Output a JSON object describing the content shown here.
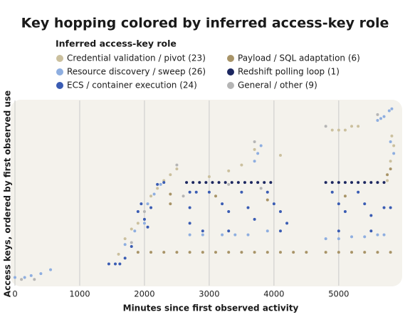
{
  "chart_data": {
    "type": "scatter",
    "title": "Key hopping colored by inferred access-key role",
    "legend_title": "Inferred access-key role",
    "xlabel": "Minutes since first observed activity",
    "ylabel": "Access keys, ordered by first observed use",
    "xlim": [
      -66,
      5870
    ],
    "xticks": [
      0,
      1000,
      2000,
      3000,
      4000,
      5000
    ],
    "ylim": [
      0,
      90
    ],
    "grid": true,
    "series": [
      {
        "name": "Credential validation / pivot (23)",
        "color": "#cbc09e",
        "x": [
          1600,
          1700,
          1800,
          1900,
          2100,
          2200,
          2300,
          2400,
          2500,
          3000,
          3300,
          3500,
          3700,
          4100,
          4900,
          5000,
          5100,
          5200,
          5300,
          5750,
          5800,
          5820,
          5850
        ],
        "y": [
          14,
          22,
          27,
          30,
          44,
          48,
          52,
          55,
          58,
          54,
          57,
          60,
          68,
          65,
          78,
          78,
          78,
          80,
          80,
          52,
          62,
          75,
          70
        ]
      },
      {
        "name": "Resource discovery / sweep (26)",
        "color": "#8eaee0",
        "x": [
          0,
          150,
          250,
          400,
          550,
          1700,
          1850,
          2000,
          2050,
          2150,
          2250,
          2700,
          2900,
          3200,
          3400,
          3600,
          3700,
          3750,
          3800,
          3900,
          4800,
          5000,
          5200,
          5400,
          5600,
          5700,
          5600,
          5650,
          5700,
          5780,
          5820,
          5800,
          5850
        ],
        "y": [
          2,
          2,
          3,
          4,
          6,
          19,
          26,
          30,
          40,
          45,
          50,
          24,
          24,
          24,
          24,
          24,
          62,
          66,
          70,
          26,
          22,
          22,
          23,
          23,
          24,
          24,
          83,
          84,
          85,
          88,
          89,
          72,
          66
        ]
      },
      {
        "name": "ECS / container execution (24)",
        "color": "#3a5cb3",
        "x": [
          1450,
          1550,
          1620,
          1700,
          1800,
          1900,
          1950,
          2000,
          2050,
          2100,
          2200,
          2300,
          2700,
          2700,
          2700,
          2800,
          2900,
          3000,
          3200,
          3300,
          3300,
          3500,
          3600,
          3700,
          3900,
          4000,
          4100,
          4100,
          4200,
          4900,
          5000,
          5000,
          5100,
          5300,
          5400,
          5500,
          5500,
          5700,
          5800
        ],
        "y": [
          9,
          9,
          9,
          12,
          18,
          36,
          40,
          32,
          28,
          38,
          50,
          51,
          46,
          38,
          30,
          46,
          26,
          46,
          40,
          36,
          26,
          46,
          38,
          32,
          46,
          40,
          36,
          26,
          30,
          46,
          40,
          26,
          36,
          46,
          40,
          34,
          26,
          38,
          38
        ]
      },
      {
        "name": "Payload / SQL adaptation (6)",
        "color": "#a89468",
        "x": [
          1900,
          2100,
          2300,
          2500,
          2700,
          2900,
          3100,
          3300,
          3500,
          3700,
          3900,
          4100,
          4300,
          4500,
          4800,
          5000,
          5200,
          5400,
          5600,
          5800,
          2400,
          2400,
          3100,
          3900,
          5100,
          5750,
          5800
        ],
        "y": [
          15,
          15,
          15,
          15,
          15,
          15,
          15,
          15,
          15,
          15,
          15,
          15,
          15,
          15,
          15,
          15,
          15,
          15,
          15,
          15,
          40,
          45,
          44,
          42,
          44,
          55,
          58
        ]
      },
      {
        "name": "Redshift polling loop (1)",
        "color": "#1c2760",
        "x": [
          2650,
          2750,
          2850,
          2950,
          3050,
          3150,
          3250,
          3350,
          3450,
          3550,
          3650,
          3750,
          3850,
          3950,
          4800,
          4900,
          5000,
          5100,
          5200,
          5300,
          5400,
          5500,
          5600,
          5700
        ],
        "y": [
          51,
          51,
          51,
          51,
          51,
          51,
          51,
          51,
          51,
          51,
          51,
          51,
          51,
          51,
          51,
          51,
          51,
          51,
          51,
          51,
          51,
          51,
          51,
          51
        ]
      },
      {
        "name": "General / other (9)",
        "color": "#b5b5b5",
        "x": [
          100,
          300,
          1800,
          2000,
          2500,
          2600,
          3300,
          3700,
          3800,
          4800,
          5600
        ],
        "y": [
          1,
          1,
          20,
          36,
          60,
          44,
          50,
          72,
          48,
          80,
          86
        ]
      }
    ]
  }
}
